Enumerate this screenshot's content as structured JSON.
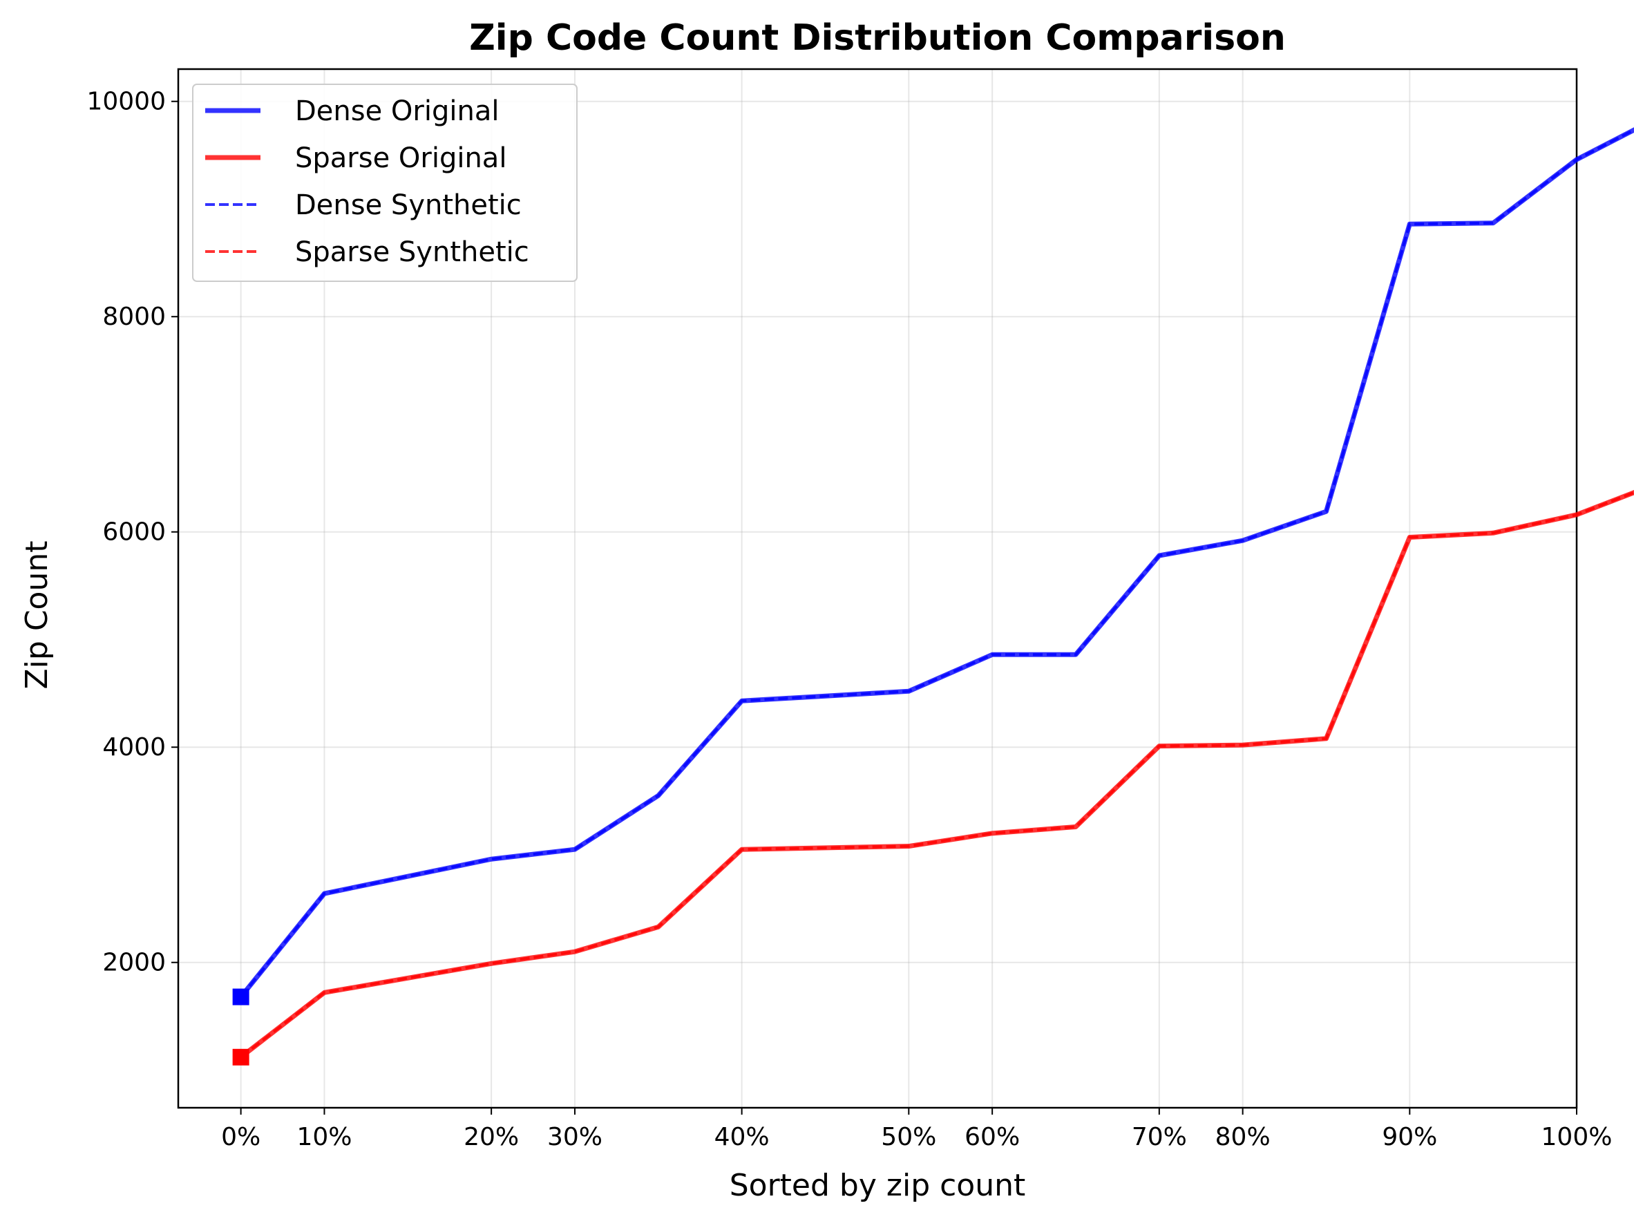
{
  "chart_data": {
    "type": "line",
    "title": "Zip Code Count Distribution Comparison",
    "xlabel": "Sorted by zip count",
    "ylabel": "Zip Count",
    "x": [
      0,
      1,
      3,
      4,
      5,
      6,
      8,
      9,
      10,
      11,
      12,
      13,
      14,
      15,
      16,
      17
    ],
    "x_ticks": [
      {
        "pos": 0,
        "label": "0%"
      },
      {
        "pos": 1,
        "label": "10%"
      },
      {
        "pos": 3,
        "label": "20%"
      },
      {
        "pos": 4,
        "label": "30%"
      },
      {
        "pos": 6,
        "label": "40%"
      },
      {
        "pos": 8,
        "label": "50%"
      },
      {
        "pos": 9,
        "label": "60%"
      },
      {
        "pos": 11,
        "label": "70%"
      },
      {
        "pos": 12,
        "label": "80%"
      },
      {
        "pos": 14,
        "label": "90%"
      },
      {
        "pos": 16,
        "label": "100%"
      }
    ],
    "xlim": [
      -0.75,
      16
    ],
    "y_ticks": [
      2000,
      4000,
      6000,
      8000,
      10000
    ],
    "ylim": [
      650,
      10300
    ],
    "grid": true,
    "legend_position": "upper-left",
    "series": [
      {
        "name": "Dense Original",
        "color": "#0000ff",
        "style": "solid",
        "x": [
          0,
          1,
          2,
          3,
          4,
          5,
          6,
          7,
          8,
          9,
          10,
          11,
          12,
          13,
          14,
          15
        ],
        "values": [
          1680,
          2640,
          2960,
          3050,
          3550,
          4430,
          4520,
          4860,
          4860,
          5780,
          5920,
          6190,
          8860,
          8870,
          9460,
          9860
        ],
        "end_markers": true
      },
      {
        "name": "Sparse Original",
        "color": "#ff0000",
        "style": "solid",
        "x": [
          0,
          1,
          2,
          3,
          4,
          5,
          6,
          7,
          8,
          9,
          10,
          11,
          12,
          13,
          14,
          15
        ],
        "values": [
          1120,
          1720,
          1990,
          2100,
          2330,
          3050,
          3080,
          3200,
          3260,
          4010,
          4020,
          4080,
          5950,
          5990,
          6160,
          6460
        ],
        "end_markers": true
      },
      {
        "name": "Dense Synthetic",
        "color": "#0000ff",
        "style": "dashed",
        "x": [
          0,
          1,
          2,
          3,
          4,
          5,
          6,
          7,
          8,
          9,
          10,
          11,
          12,
          13,
          14,
          15
        ],
        "values": [
          1680,
          2640,
          2960,
          3050,
          3550,
          4430,
          4520,
          4860,
          4860,
          5780,
          5920,
          6190,
          8860,
          8870,
          9460,
          9860
        ]
      },
      {
        "name": "Sparse Synthetic",
        "color": "#ff0000",
        "style": "dashed",
        "x": [
          0,
          1,
          2,
          3,
          4,
          5,
          6,
          7,
          8,
          9,
          10,
          11,
          12,
          13,
          14,
          15
        ],
        "values": [
          1120,
          1720,
          1990,
          2100,
          2330,
          3050,
          3080,
          3200,
          3260,
          4010,
          4020,
          4080,
          5950,
          5990,
          6160,
          6460
        ]
      }
    ]
  }
}
